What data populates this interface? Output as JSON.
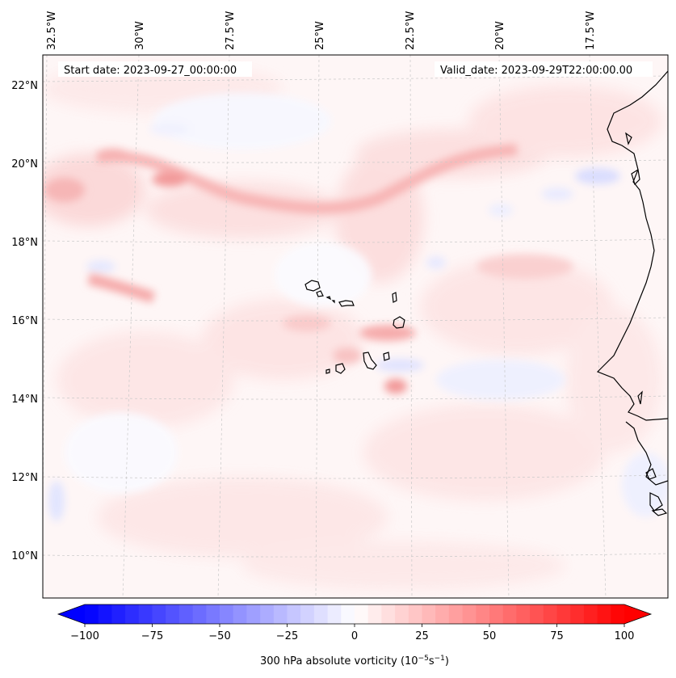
{
  "map": {
    "start_label": "Start date: 2023-09-27_00:00:00",
    "valid_label": "Valid_date: 2023-09-29T22:00:00.00",
    "lon_labels": [
      "32.5°W",
      "30°W",
      "27.5°W",
      "25°W",
      "22.5°W",
      "20°W",
      "17.5°W"
    ],
    "lat_labels": [
      "22°N",
      "20°N",
      "18°N",
      "16°N",
      "14°N",
      "12°N",
      "10°N"
    ],
    "extent": {
      "lon_min": -33.0,
      "lon_max": -16.0,
      "lat_min": 9.0,
      "lat_max": 22.8
    },
    "field": "300 hPa absolute vorticity",
    "coastline_color": "#000000"
  },
  "colorbar": {
    "label": "300 hPa absolute vorticity (10",
    "label_exp1": "−5",
    "label_mid": "s",
    "label_exp2": "−1",
    "label_end": ")",
    "ticks": [
      "−100",
      "−75",
      "−50",
      "−25",
      "0",
      "25",
      "50",
      "75",
      "100"
    ],
    "min": -100,
    "max": 100,
    "min_color": "#0000ff",
    "max_color": "#ff0000"
  }
}
